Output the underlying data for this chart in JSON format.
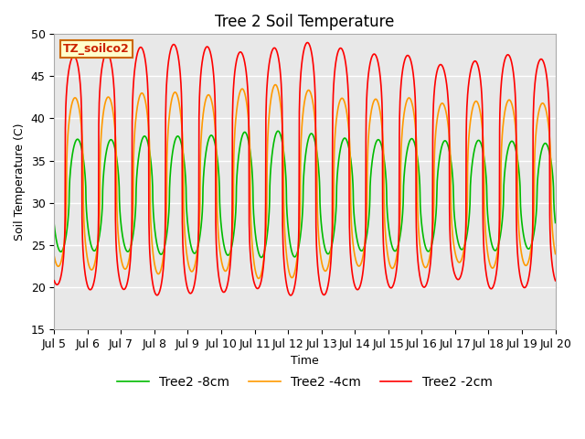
{
  "title": "Tree 2 Soil Temperature",
  "ylabel": "Soil Temperature (C)",
  "xlabel": "Time",
  "ylim": [
    15,
    50
  ],
  "yticks": [
    15,
    20,
    25,
    30,
    35,
    40,
    45,
    50
  ],
  "x_labels": [
    "Jul 5",
    "Jul 6",
    "Jul 7",
    "Jul 8",
    "Jul 9",
    "Jul 10",
    "Jul 11",
    "Jul 12",
    "Jul 13",
    "Jul 14",
    "Jul 15",
    "Jul 16",
    "Jul 17",
    "Jul 18",
    "Jul 19",
    "Jul 20"
  ],
  "label_box_text": "TZ_soilco2",
  "label_box_bg": "#ffffcc",
  "label_box_edge": "#cc6600",
  "line_colors": [
    "#ff0000",
    "#ff9900",
    "#00bb00"
  ],
  "line_labels": [
    "Tree2 -2cm",
    "Tree2 -4cm",
    "Tree2 -8cm"
  ],
  "line_width": 1.2,
  "bg_color": "#e8e8e8",
  "fig_bg": "#ffffff",
  "title_fontsize": 12,
  "axis_label_fontsize": 9,
  "tick_fontsize": 9,
  "legend_fontsize": 10
}
